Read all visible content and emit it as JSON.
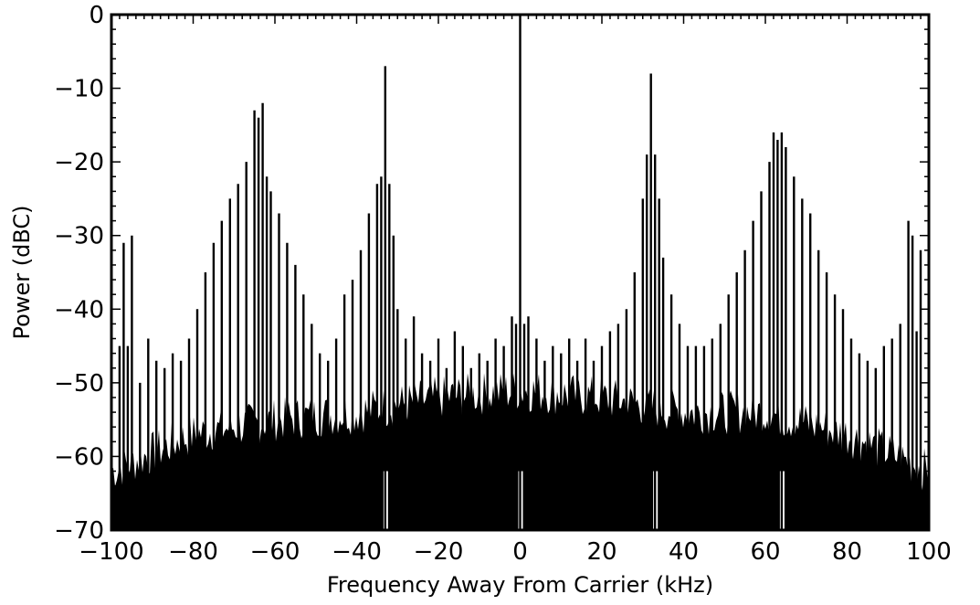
{
  "chart_data": {
    "type": "line",
    "title": "",
    "xlabel": "Frequency Away From Carrier (kHz)",
    "ylabel": "Power (dBC)",
    "xlim": [
      -100,
      100
    ],
    "ylim": [
      -70,
      0
    ],
    "xticks": [
      -100,
      -80,
      -60,
      -40,
      -20,
      0,
      20,
      40,
      60,
      80,
      100
    ],
    "yticks": [
      0,
      -10,
      -20,
      -30,
      -40,
      -50,
      -60,
      -70
    ],
    "xtick_labels": [
      "−100",
      "−80",
      "−60",
      "−40",
      "−20",
      "0",
      "20",
      "40",
      "60",
      "80",
      "100"
    ],
    "ytick_labels": [
      "0",
      "−10",
      "−20",
      "−30",
      "−40",
      "−50",
      "−60",
      "−70"
    ],
    "grid": false,
    "line_color": "#000000",
    "noise_floor_dBc": [
      {
        "x": -100,
        "y": -62
      },
      {
        "x": -80,
        "y": -57
      },
      {
        "x": -60,
        "y": -55
      },
      {
        "x": -40,
        "y": -54
      },
      {
        "x": -20,
        "y": -52
      },
      {
        "x": 0,
        "y": -51
      },
      {
        "x": 20,
        "y": -52
      },
      {
        "x": 40,
        "y": -54
      },
      {
        "x": 60,
        "y": -54
      },
      {
        "x": 80,
        "y": -57
      },
      {
        "x": 100,
        "y": -62
      }
    ],
    "series": [
      {
        "name": "",
        "mode": "spectral-lines",
        "x": [
          -98,
          -97,
          -96,
          -95,
          -93,
          -91,
          -89,
          -87,
          -85,
          -83,
          -81,
          -79,
          -77,
          -75,
          -73,
          -71,
          -69,
          -67,
          -65,
          -64,
          -63,
          -62,
          -61,
          -59,
          -57,
          -55,
          -53,
          -51,
          -49,
          -47,
          -45,
          -43,
          -41,
          -39,
          -37,
          -35,
          -34,
          -33,
          -32,
          -31,
          -30,
          -28,
          -26,
          -24,
          -22,
          -20,
          -18,
          -16,
          -14,
          -12,
          -10,
          -8,
          -6,
          -4,
          -2,
          -1,
          0,
          1,
          2,
          4,
          6,
          8,
          10,
          12,
          14,
          16,
          18,
          20,
          22,
          24,
          26,
          28,
          30,
          31,
          32,
          33,
          34,
          35,
          37,
          39,
          41,
          43,
          45,
          47,
          49,
          51,
          53,
          55,
          57,
          59,
          61,
          62,
          63,
          64,
          65,
          67,
          69,
          71,
          73,
          75,
          77,
          79,
          81,
          83,
          85,
          87,
          89,
          91,
          93,
          95,
          96,
          97,
          98
        ],
        "y": [
          -45,
          -31,
          -45,
          -30,
          -50,
          -44,
          -47,
          -48,
          -46,
          -47,
          -44,
          -40,
          -35,
          -31,
          -28,
          -25,
          -23,
          -20,
          -13,
          -14,
          -12,
          -22,
          -24,
          -27,
          -31,
          -34,
          -38,
          -42,
          -46,
          -47,
          -44,
          -38,
          -36,
          -32,
          -27,
          -23,
          -22,
          -7,
          -23,
          -30,
          -40,
          -44,
          -41,
          -46,
          -47,
          -44,
          -48,
          -43,
          -45,
          -48,
          -46,
          -47,
          -44,
          -45,
          -41,
          -42,
          0,
          -42,
          -41,
          -44,
          -47,
          -45,
          -46,
          -44,
          -47,
          -44,
          -47,
          -45,
          -43,
          -42,
          -40,
          -35,
          -25,
          -19,
          -8,
          -19,
          -25,
          -33,
          -38,
          -42,
          -45,
          -45,
          -45,
          -44,
          -42,
          -38,
          -35,
          -32,
          -28,
          -24,
          -20,
          -16,
          -17,
          -16,
          -18,
          -22,
          -25,
          -27,
          -32,
          -35,
          -38,
          -40,
          -44,
          -46,
          -47,
          -48,
          -45,
          -44,
          -42,
          -28,
          -30,
          -43,
          -32
        ]
      }
    ]
  }
}
